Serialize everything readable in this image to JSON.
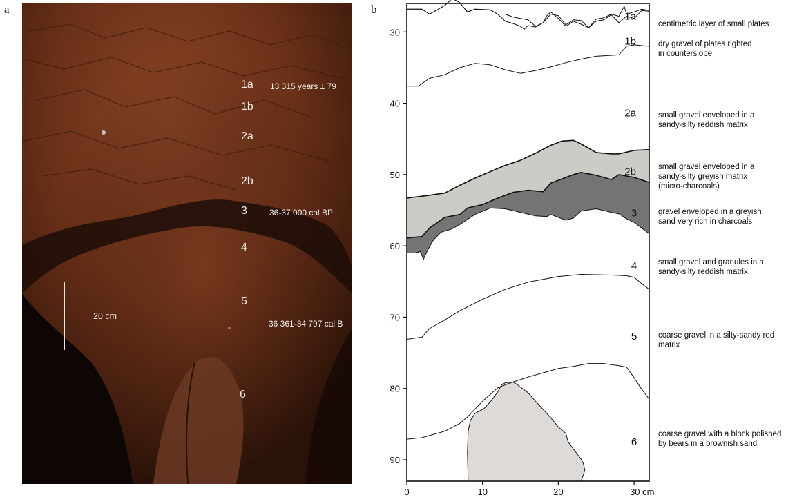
{
  "figure": {
    "panel_a": "a",
    "panel_b": "b"
  },
  "photo": {
    "layer_labels": [
      "1a",
      "1b",
      "2a",
      "2b",
      "3",
      "4",
      "5",
      "6"
    ],
    "date_1a": "13 315 years ± 79",
    "date_3": "36-37 000 cal BP",
    "date_5": "36 361-34 797 cal B",
    "scale_label": "20 cm"
  },
  "chart_data": {
    "type": "stratigraphic-section",
    "xlim": [
      0,
      32
    ],
    "ylim": [
      26,
      93
    ],
    "y_inverted": true,
    "x_ticks": [
      "0",
      "10",
      "20",
      "30 cm"
    ],
    "x_tick_values": [
      0,
      10,
      20,
      30
    ],
    "y_ticks": [
      "30",
      "40",
      "50",
      "60",
      "70",
      "80",
      "90"
    ],
    "y_tick_values": [
      30,
      40,
      50,
      60,
      70,
      80,
      90
    ],
    "colors": {
      "layer_2b": "#cbccc5",
      "layer_3": "#747474",
      "block": "#dedad8"
    },
    "boundaries": [
      {
        "name": "top-1a",
        "points": [
          [
            0,
            26.8
          ],
          [
            2,
            26.8
          ],
          [
            3,
            27.5
          ],
          [
            5,
            26.3
          ],
          [
            6,
            25.3
          ],
          [
            7,
            25.9
          ],
          [
            8,
            27.2
          ],
          [
            9,
            26.8
          ],
          [
            11,
            26.9
          ],
          [
            12,
            27.5
          ],
          [
            13,
            27.5
          ],
          [
            14,
            27.9
          ],
          [
            15,
            28.1
          ],
          [
            16,
            28.3
          ],
          [
            17,
            29.2
          ],
          [
            18,
            28.7
          ],
          [
            19,
            27.5
          ],
          [
            20,
            27.7
          ],
          [
            21,
            29.0
          ],
          [
            22,
            28.3
          ],
          [
            23,
            28.4
          ],
          [
            24,
            29.4
          ],
          [
            25,
            28.2
          ],
          [
            26,
            28.0
          ],
          [
            27,
            27.5
          ],
          [
            28,
            27.8
          ],
          [
            28.7,
            26.4
          ],
          [
            29,
            27.5
          ],
          [
            30,
            27.2
          ],
          [
            31,
            26.8
          ],
          [
            32,
            27.0
          ]
        ]
      },
      {
        "name": "base-1a",
        "points": [
          [
            0,
            26.8
          ],
          [
            2,
            26.8
          ],
          [
            3,
            27.5
          ],
          [
            5,
            26.3
          ],
          [
            6,
            25.3
          ],
          [
            7,
            25.9
          ],
          [
            8,
            27.2
          ],
          [
            9,
            26.8
          ],
          [
            11,
            26.9
          ],
          [
            12,
            27.5
          ],
          [
            13,
            28.5
          ],
          [
            14,
            28.8
          ],
          [
            15,
            29.2
          ],
          [
            15.5,
            29.6
          ],
          [
            16,
            29.1
          ],
          [
            17,
            29.3
          ],
          [
            18,
            28.7
          ],
          [
            18.5,
            27.7
          ],
          [
            19,
            27.2
          ],
          [
            20,
            28.1
          ],
          [
            21,
            29.2
          ],
          [
            22,
            28.5
          ],
          [
            23,
            28.9
          ],
          [
            24,
            29.4
          ],
          [
            25,
            28.5
          ],
          [
            26,
            28.3
          ],
          [
            27,
            27.6
          ],
          [
            28,
            28.7
          ],
          [
            29,
            27.8
          ],
          [
            30,
            28.1
          ],
          [
            31,
            27.0
          ],
          [
            32,
            27.1
          ]
        ]
      },
      {
        "name": "base-1b",
        "points": [
          [
            0,
            37.6
          ],
          [
            1.5,
            37.6
          ],
          [
            3,
            36.5
          ],
          [
            5,
            36.0
          ],
          [
            7,
            35.0
          ],
          [
            9,
            34.4
          ],
          [
            11,
            34.6
          ],
          [
            13,
            35.3
          ],
          [
            15,
            35.8
          ],
          [
            17,
            35.4
          ],
          [
            19,
            34.9
          ],
          [
            21,
            34.3
          ],
          [
            23,
            33.8
          ],
          [
            25,
            33.4
          ],
          [
            28,
            33.2
          ],
          [
            29,
            32.0
          ],
          [
            30,
            31.8
          ],
          [
            32,
            32.0
          ]
        ]
      },
      {
        "name": "top-2b",
        "points": [
          [
            0,
            53.3
          ],
          [
            1.5,
            53.1
          ],
          [
            3,
            52.9
          ],
          [
            5,
            52.6
          ],
          [
            7,
            51.5
          ],
          [
            9,
            50.5
          ],
          [
            11,
            49.6
          ],
          [
            13,
            48.7
          ],
          [
            15,
            48.0
          ],
          [
            17,
            47.0
          ],
          [
            19,
            45.9
          ],
          [
            20.5,
            45.3
          ],
          [
            22,
            45.2
          ],
          [
            23,
            45.7
          ],
          [
            25,
            46.9
          ],
          [
            27,
            47.1
          ],
          [
            28,
            47.1
          ],
          [
            30,
            46.6
          ],
          [
            32,
            46.5
          ]
        ]
      },
      {
        "name": "top-3",
        "points": [
          [
            0,
            58.9
          ],
          [
            2,
            58.7
          ],
          [
            3,
            57.5
          ],
          [
            5,
            56.0
          ],
          [
            7,
            55.6
          ],
          [
            8,
            54.7
          ],
          [
            10,
            54.2
          ],
          [
            12,
            53.3
          ],
          [
            14,
            52.5
          ],
          [
            16,
            52.2
          ],
          [
            18,
            52.4
          ],
          [
            19,
            51.2
          ],
          [
            20,
            50.8
          ],
          [
            22,
            50.0
          ],
          [
            23,
            49.7
          ],
          [
            25,
            50.1
          ],
          [
            27,
            50.7
          ],
          [
            28,
            50.0
          ],
          [
            30,
            50.4
          ],
          [
            32,
            51.1
          ]
        ]
      },
      {
        "name": "base-3",
        "points": [
          [
            0,
            61.0
          ],
          [
            1.2,
            61.0
          ],
          [
            1.8,
            60.8
          ],
          [
            2.2,
            61.9
          ],
          [
            2.8,
            60.5
          ],
          [
            3.5,
            59.2
          ],
          [
            4.5,
            58.1
          ],
          [
            6,
            57.6
          ],
          [
            7,
            57.0
          ],
          [
            9,
            55.6
          ],
          [
            11,
            54.7
          ],
          [
            13,
            54.8
          ],
          [
            15,
            55.3
          ],
          [
            17,
            55.8
          ],
          [
            18.5,
            55.9
          ],
          [
            19,
            55.6
          ],
          [
            20,
            56.0
          ],
          [
            21,
            56.4
          ],
          [
            22,
            56.1
          ],
          [
            23,
            55.1
          ],
          [
            25,
            54.8
          ],
          [
            27,
            55.3
          ],
          [
            28,
            55.5
          ],
          [
            29,
            56.2
          ],
          [
            30,
            56.7
          ],
          [
            31,
            57.5
          ],
          [
            32,
            58.3
          ]
        ]
      },
      {
        "name": "base-4",
        "points": [
          [
            0,
            73.1
          ],
          [
            2,
            72.8
          ],
          [
            3,
            71.6
          ],
          [
            5,
            70.4
          ],
          [
            7,
            69.1
          ],
          [
            10,
            67.5
          ],
          [
            13,
            66.1
          ],
          [
            16,
            65.1
          ],
          [
            20,
            64.3
          ],
          [
            23,
            64.0
          ],
          [
            27,
            64.1
          ],
          [
            29,
            64.2
          ],
          [
            30,
            64.4
          ],
          [
            31,
            65.3
          ],
          [
            32,
            66.1
          ]
        ]
      },
      {
        "name": "base-5",
        "points": [
          [
            0,
            87.1
          ],
          [
            2,
            86.9
          ],
          [
            3,
            86.6
          ],
          [
            5,
            86.0
          ],
          [
            7,
            84.9
          ],
          [
            8,
            84.0
          ],
          [
            9,
            82.9
          ],
          [
            10,
            81.8
          ],
          [
            12,
            79.9
          ],
          [
            14,
            79.1
          ],
          [
            16,
            78.4
          ],
          [
            18,
            77.8
          ],
          [
            20,
            77.2
          ],
          [
            22,
            76.9
          ],
          [
            24,
            76.5
          ],
          [
            26,
            76.5
          ],
          [
            28,
            76.8
          ],
          [
            29,
            77.0
          ],
          [
            30,
            78.5
          ],
          [
            31,
            80.1
          ],
          [
            32,
            81.5
          ]
        ]
      }
    ],
    "block": [
      [
        8.1,
        93
      ],
      [
        8.0,
        89
      ],
      [
        8.1,
        86
      ],
      [
        8.4,
        84.5
      ],
      [
        9,
        83.5
      ],
      [
        10.2,
        82.8
      ],
      [
        11,
        81.9
      ],
      [
        12,
        80.5
      ],
      [
        12.5,
        79.5
      ],
      [
        13,
        79.2
      ],
      [
        14,
        79.1
      ],
      [
        14.5,
        79.4
      ],
      [
        16,
        80.6
      ],
      [
        17,
        81.8
      ],
      [
        19,
        84.1
      ],
      [
        20,
        85.4
      ],
      [
        21,
        86.3
      ],
      [
        21.3,
        87.5
      ],
      [
        22,
        88.5
      ],
      [
        23,
        89.9
      ],
      [
        23.3,
        90.5
      ],
      [
        23.5,
        91.5
      ],
      [
        23,
        93
      ]
    ],
    "layer_labels": [
      {
        "label": "1a",
        "x": 29.5,
        "y": 26.8
      },
      {
        "label": "1b",
        "x": 29.5,
        "y": 30.3
      },
      {
        "label": "2a",
        "x": 29.5,
        "y": 40.4
      },
      {
        "label": "2b",
        "x": 29.5,
        "y": 48.6
      },
      {
        "label": "3",
        "x": 30.0,
        "y": 54.4
      },
      {
        "label": "4",
        "x": 30.0,
        "y": 61.8
      },
      {
        "label": "5",
        "x": 30.0,
        "y": 71.7
      },
      {
        "label": "6",
        "x": 30.0,
        "y": 86.5
      }
    ]
  },
  "descriptions": [
    [
      "centimetric layer of small plates"
    ],
    [
      "dry gravel of plates righted",
      "in counterslope"
    ],
    [
      "small gravel enveloped in a",
      "sandy-silty reddish matrix"
    ],
    [
      "small gravel enveloped in a",
      "sandy-silty greyish matrix",
      "(micro-charcoals)"
    ],
    [
      "gravel enveloped in a greyish",
      "sand very rich in charcoals"
    ],
    [
      "small gravel and granules in a",
      "sandy-silty reddish matrix"
    ],
    [
      "coarse gravel in a silty-sandy red",
      "matrix"
    ],
    [
      "coarse gravel with a block polished",
      "by bears in a brownish sand"
    ]
  ]
}
